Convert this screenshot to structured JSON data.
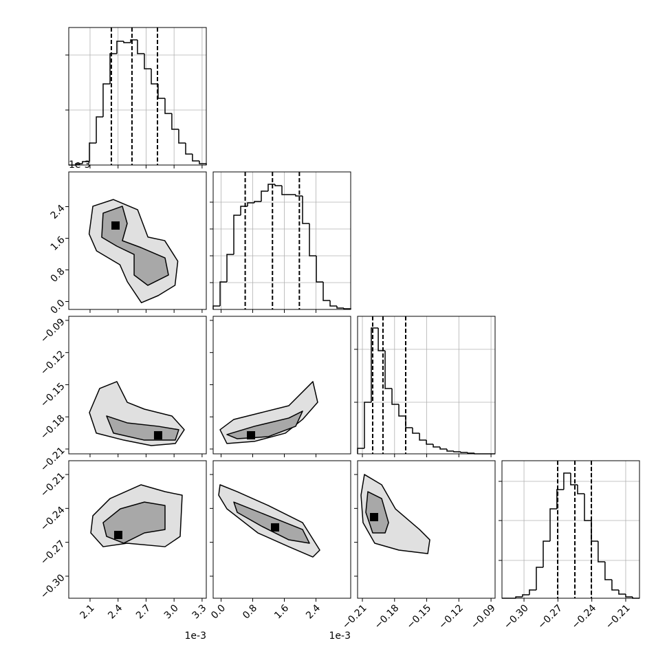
{
  "chart_data": {
    "type": "corner",
    "parameters": [
      {
        "xlim": [
          1.872,
          3.345
        ],
        "ticks": [
          2.1,
          2.4,
          2.7,
          {
            "value": 3,
            "label": "3.0"
          },
          3.3
        ],
        "offset_label": "1e-3"
      },
      {
        "xlim": [
          -0.2,
          3.278
        ],
        "ticks": [
          {
            "value": 0,
            "label": "0.0"
          },
          0.8,
          1.6,
          2.4
        ],
        "offset_label": "1e-3"
      },
      {
        "xlim": [
          -0.2145,
          -0.0862
        ],
        "ticks": [
          {
            "value": -0.21,
            "label": "−0.21"
          },
          {
            "value": -0.18,
            "label": "−0.18"
          },
          {
            "value": -0.15,
            "label": "−0.15"
          },
          {
            "value": -0.12,
            "label": "−0.12"
          },
          {
            "value": -0.09,
            "label": "−0.09"
          }
        ]
      },
      {
        "xlim": [
          -0.3195,
          -0.1978
        ],
        "ticks": [
          {
            "value": -0.3,
            "label": "−0.30"
          },
          {
            "value": -0.27,
            "label": "−0.27"
          },
          {
            "value": -0.24,
            "label": "−0.24"
          },
          {
            "value": -0.21,
            "label": "−0.21"
          }
        ]
      }
    ],
    "histograms": [
      {
        "bins": [
          1.872,
          1.946,
          2.019,
          2.093,
          2.167,
          2.24,
          2.314,
          2.387,
          2.461,
          2.535,
          2.608,
          2.682,
          2.756,
          2.829,
          2.903,
          2.976,
          3.05,
          3.124,
          3.197,
          3.271,
          3.345
        ],
        "counts": [
          0,
          2,
          5,
          32,
          70,
          118,
          162,
          180,
          178,
          182,
          162,
          140,
          118,
          97,
          75,
          52,
          32,
          16,
          6,
          2
        ],
        "ylim": [
          0,
          200
        ],
        "yticks": [
          80,
          160
        ],
        "quantiles": [
          2.328,
          2.549,
          2.822
        ]
      },
      {
        "bins": [
          -0.2,
          -0.026,
          0.148,
          0.322,
          0.496,
          0.67,
          0.843,
          1.017,
          1.191,
          1.365,
          1.539,
          1.713,
          1.887,
          2.061,
          2.235,
          2.409,
          2.583,
          2.757,
          2.93,
          3.104,
          3.278
        ],
        "counts": [
          5,
          40,
          80,
          137,
          150,
          155,
          157,
          172,
          182,
          180,
          167,
          167,
          165,
          125,
          78,
          40,
          13,
          5,
          2,
          1
        ],
        "ylim": [
          0,
          200
        ],
        "yticks": [
          39,
          78,
          117,
          156
        ],
        "quantiles": [
          0.61,
          1.3,
          1.98
        ]
      },
      {
        "bins": [
          -0.2145,
          -0.2081,
          -0.2017,
          -0.1952,
          -0.1888,
          -0.1824,
          -0.176,
          -0.1696,
          -0.1632,
          -0.1567,
          -0.1503,
          -0.1439,
          -0.1375,
          -0.1311,
          -0.1247,
          -0.1182,
          -0.1118,
          -0.1054,
          -0.099,
          -0.0926,
          -0.0862
        ],
        "counts": [
          8,
          75,
          183,
          150,
          95,
          72,
          55,
          38,
          30,
          20,
          14,
          10,
          7,
          4,
          3,
          2,
          1,
          0,
          0,
          0
        ],
        "ylim": [
          0,
          200
        ],
        "yticks": [
          75,
          152
        ],
        "quantiles": [
          -0.2004,
          -0.1908,
          -0.1696
        ]
      },
      {
        "bins": [
          -0.3195,
          -0.3134,
          -0.3073,
          -0.3013,
          -0.2952,
          -0.2891,
          -0.283,
          -0.2769,
          -0.2709,
          -0.2648,
          -0.2587,
          -0.2526,
          -0.2465,
          -0.2404,
          -0.2344,
          -0.2283,
          -0.2222,
          -0.2161,
          -0.21,
          -0.2039,
          -0.1978
        ],
        "counts": [
          0,
          0,
          2,
          5,
          12,
          45,
          83,
          130,
          158,
          182,
          165,
          152,
          113,
          83,
          53,
          27,
          12,
          6,
          2,
          0
        ],
        "ylim": [
          0,
          200
        ],
        "yticks": [
          55,
          113,
          170
        ],
        "quantiles": [
          -0.2702,
          -0.255,
          -0.2404
        ]
      }
    ],
    "pairs": [
      [
        {
          "contours": [
            {
              "x": [
                2.13,
                2.35,
                2.61,
                2.72,
                2.9,
                3.04,
                3.01,
                2.83,
                2.65,
                2.5,
                2.42,
                2.17,
                2.09
              ],
              "y": [
                2.41,
                2.58,
                2.32,
                1.63,
                1.54,
                1.02,
                0.41,
                0.15,
                -0.03,
                0.5,
                0.93,
                1.28,
                1.71
              ]
            },
            {
              "x": [
                2.24,
                2.446,
                2.498,
                2.446,
                2.645,
                2.903,
                2.94,
                2.719,
                2.572,
                2.572,
                2.387,
                2.225
              ],
              "y": [
                2.235,
                2.409,
                1.974,
                1.539,
                1.365,
                1.104,
                0.67,
                0.409,
                0.67,
                1.191,
                1.4,
                1.626
              ]
            }
          ],
          "peak": {
            "x": 2.373,
            "y": 1.922
          }
        }
      ],
      [
        {
          "contours": [
            {
              "x": [
                2.093,
                2.203,
                2.387,
                2.498,
                2.682,
                2.977,
                3.109,
                3.013,
                2.756,
                2.461,
                2.167
              ],
              "y": [
                -0.176,
                -0.1535,
                -0.1471,
                -0.1664,
                -0.1728,
                -0.1792,
                -0.192,
                -0.2049,
                -0.2068,
                -0.2017,
                -0.1952
              ]
            },
            {
              "x": [
                2.277,
                2.498,
                2.829,
                3.05,
                3.013,
                2.682,
                2.351
              ],
              "y": [
                -0.1792,
                -0.1856,
                -0.1888,
                -0.192,
                -0.2017,
                -0.2017,
                -0.1952
              ]
            }
          ],
          "peak": {
            "x": 2.829,
            "y": -0.1972
          }
        },
        {
          "contours": [
            {
              "x": [
                -0.026,
                0.322,
                1.017,
                1.713,
                2.322,
                2.443,
                2.061,
                1.626,
                0.843,
                0.148
              ],
              "y": [
                -0.192,
                -0.1824,
                -0.176,
                -0.1696,
                -0.1471,
                -0.1664,
                -0.1824,
                -0.1952,
                -0.2029,
                -0.2049
              ]
            },
            {
              "x": [
                0.148,
                0.843,
                1.713,
                2.061,
                1.887,
                1.191,
                0.409
              ],
              "y": [
                -0.1965,
                -0.1888,
                -0.1811,
                -0.1747,
                -0.1888,
                -0.1985,
                -0.2004
              ]
            }
          ],
          "peak": {
            "x": 0.757,
            "y": -0.1972
          }
        }
      ],
      [
        {
          "contours": [
            {
              "x": [
                2.13,
                2.314,
                2.645,
                2.903,
                3.087,
                3.065,
                2.903,
                2.498,
                2.24,
                2.108
              ],
              "y": [
                -0.2465,
                -0.2313,
                -0.2191,
                -0.2252,
                -0.2283,
                -0.2648,
                -0.2739,
                -0.2708,
                -0.2739,
                -0.2617
              ]
            },
            {
              "x": [
                2.24,
                2.424,
                2.682,
                2.903,
                2.903,
                2.682,
                2.461,
                2.277
              ],
              "y": [
                -0.2526,
                -0.2404,
                -0.2344,
                -0.2374,
                -0.2587,
                -0.2617,
                -0.2708,
                -0.2648
              ]
            }
          ],
          "peak": {
            "x": 2.402,
            "y": -0.2635
          }
        },
        {
          "contours": [
            {
              "x": [
                -0.026,
                0.409,
                1.191,
                2.061,
                2.496,
                2.322,
                1.713,
                0.93,
                0.148,
                -0.061
              ],
              "y": [
                -0.2191,
                -0.2252,
                -0.2374,
                -0.2526,
                -0.2769,
                -0.283,
                -0.2739,
                -0.2617,
                -0.2404,
                -0.2283
              ]
            },
            {
              "x": [
                0.322,
                1.104,
                2.061,
                2.235,
                1.713,
                1.017,
                0.409
              ],
              "y": [
                -0.2344,
                -0.2453,
                -0.2587,
                -0.2708,
                -0.2678,
                -0.2556,
                -0.2435
              ]
            }
          ],
          "peak": {
            "x": 1.365,
            "y": -0.2568
          }
        },
        {
          "contours": [
            {
              "x": [
                -0.2081,
                -0.192,
                -0.1792,
                -0.1567,
                -0.1471,
                -0.149,
                -0.176,
                -0.1985,
                -0.2094,
                -0.2113
              ],
              "y": [
                -0.21,
                -0.2191,
                -0.2404,
                -0.2587,
                -0.2678,
                -0.28,
                -0.2769,
                -0.2708,
                -0.2526,
                -0.2283
              ]
            },
            {
              "x": [
                -0.2049,
                -0.192,
                -0.1856,
                -0.1888,
                -0.2004,
                -0.2068
              ],
              "y": [
                -0.2252,
                -0.2313,
                -0.2526,
                -0.2617,
                -0.2617,
                -0.2435
              ]
            }
          ],
          "peak": {
            "x": -0.1991,
            "y": -0.2477
          }
        }
      ]
    ]
  }
}
